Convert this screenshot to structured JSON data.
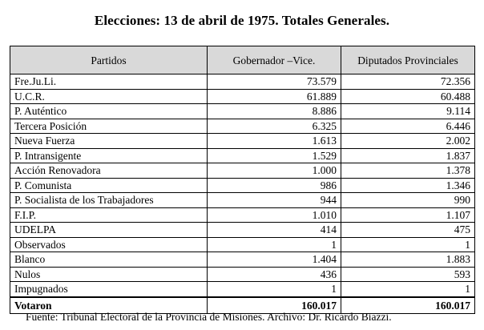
{
  "title": "Elecciones: 13 de abril de 1975. Totales Generales.",
  "table": {
    "headers": [
      "Partidos",
      "Gobernador –Vice.",
      "Diputados Provinciales"
    ],
    "rows": [
      [
        "Fre.Ju.Li.",
        "73.579",
        "72.356"
      ],
      [
        "U.C.R.",
        "61.889",
        "60.488"
      ],
      [
        "P. Auténtico",
        "8.886",
        "9.114"
      ],
      [
        "Tercera Posición",
        "6.325",
        "6.446"
      ],
      [
        "Nueva Fuerza",
        "1.613",
        "2.002"
      ],
      [
        "P. Intransigente",
        "1.529",
        "1.837"
      ],
      [
        "Acción Renovadora",
        "1.000",
        "1.378"
      ],
      [
        "P. Comunista",
        "986",
        "1.346"
      ],
      [
        "P. Socialista de los Trabajadores",
        "944",
        "990"
      ],
      [
        "F.I.P.",
        "1.010",
        "1.107"
      ],
      [
        "UDELPA",
        "414",
        "475"
      ],
      [
        "Observados",
        "1",
        "1"
      ],
      [
        "Blanco",
        "1.404",
        "1.883"
      ],
      [
        "Nulos",
        "436",
        "593"
      ],
      [
        "Impugnados",
        "1",
        "1"
      ]
    ],
    "total": [
      "Votaron",
      "160.017",
      "160.017"
    ]
  },
  "source": "Fuente: Tribunal Electoral de la Provincia de Misiones. Archivo: Dr. Ricardo Biazzi."
}
